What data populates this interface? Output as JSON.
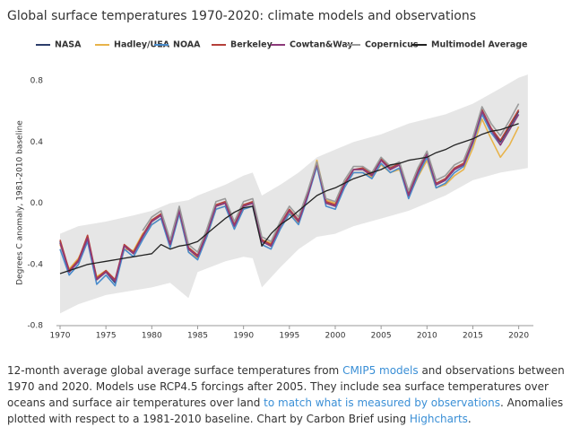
{
  "chart_data": {
    "type": "line",
    "title": "Global surface temperatures 1970-2020: climate models and observations",
    "ylabel": "Degrees C anomaly, 1981-2010 baseline",
    "x": [
      1970,
      1971,
      1972,
      1973,
      1974,
      1975,
      1976,
      1977,
      1978,
      1979,
      1980,
      1981,
      1982,
      1983,
      1984,
      1985,
      1986,
      1987,
      1988,
      1989,
      1990,
      1991,
      1992,
      1993,
      1994,
      1995,
      1996,
      1997,
      1998,
      1999,
      2000,
      2001,
      2002,
      2003,
      2004,
      2005,
      2006,
      2007,
      2008,
      2009,
      2010,
      2011,
      2012,
      2013,
      2014,
      2015,
      2016,
      2017,
      2018,
      2019,
      2020
    ],
    "xlim": [
      1969.6,
      2021.6
    ],
    "xticks": [
      1970,
      1975,
      1980,
      1985,
      1990,
      1995,
      2000,
      2005,
      2010,
      2015,
      2020
    ],
    "ylim": [
      -0.8,
      0.8
    ],
    "yticks": [
      {
        "value": -0.8,
        "label": "-0.8"
      },
      -0.4,
      {
        "value": 0,
        "label": "0.0"
      },
      0.4,
      0.8
    ],
    "grid": false,
    "legend": "top",
    "band": {
      "color": "#e6e6e6",
      "x": [
        1970,
        1972,
        1975,
        1978,
        1980,
        1982,
        1984,
        1985,
        1988,
        1990,
        1991,
        1992,
        1994,
        1996,
        1998,
        2000,
        2002,
        2005,
        2008,
        2010,
        2012,
        2015,
        2018,
        2020,
        2021
      ],
      "upper": [
        -0.2,
        -0.15,
        -0.12,
        -0.08,
        -0.05,
        0.0,
        0.02,
        0.05,
        0.12,
        0.18,
        0.2,
        0.05,
        0.12,
        0.2,
        0.3,
        0.35,
        0.4,
        0.45,
        0.52,
        0.55,
        0.58,
        0.65,
        0.75,
        0.82,
        0.84
      ],
      "lower": [
        -0.72,
        -0.66,
        -0.6,
        -0.57,
        -0.55,
        -0.52,
        -0.62,
        -0.45,
        -0.38,
        -0.35,
        -0.36,
        -0.55,
        -0.42,
        -0.3,
        -0.22,
        -0.2,
        -0.15,
        -0.1,
        -0.05,
        0.0,
        0.05,
        0.15,
        0.2,
        0.22,
        0.23
      ]
    },
    "series": [
      {
        "name": "NASA",
        "color": "#2c3e6b",
        "values": [
          -0.25,
          -0.45,
          -0.38,
          -0.22,
          -0.5,
          -0.45,
          -0.52,
          -0.28,
          -0.33,
          -0.22,
          -0.12,
          -0.08,
          -0.27,
          -0.05,
          -0.3,
          -0.35,
          -0.2,
          -0.02,
          0.0,
          -0.15,
          -0.02,
          0.0,
          -0.25,
          -0.28,
          -0.15,
          -0.05,
          -0.12,
          0.05,
          0.25,
          0.0,
          -0.02,
          0.12,
          0.22,
          0.22,
          0.18,
          0.28,
          0.22,
          0.25,
          0.05,
          0.2,
          0.32,
          0.12,
          0.15,
          0.22,
          0.25,
          0.4,
          0.6,
          0.48,
          0.4,
          0.5,
          0.6
        ]
      },
      {
        "name": "Hadley/UEA",
        "color": "#e8b34a",
        "values": [
          -0.27,
          -0.43,
          -0.36,
          -0.24,
          -0.48,
          -0.44,
          -0.5,
          -0.3,
          -0.31,
          -0.2,
          -0.14,
          -0.1,
          -0.25,
          -0.07,
          -0.32,
          -0.36,
          -0.22,
          -0.04,
          -0.02,
          -0.16,
          -0.04,
          -0.02,
          -0.24,
          -0.26,
          -0.16,
          -0.06,
          -0.13,
          0.06,
          0.28,
          0.02,
          0.0,
          0.13,
          0.2,
          0.2,
          0.17,
          0.25,
          0.2,
          0.22,
          0.04,
          0.17,
          0.28,
          0.1,
          0.12,
          0.18,
          0.22,
          0.36,
          0.55,
          0.42,
          0.3,
          0.38,
          0.5
        ]
      },
      {
        "name": "NOAA",
        "color": "#4a8ccc",
        "values": [
          -0.3,
          -0.47,
          -0.4,
          -0.25,
          -0.53,
          -0.47,
          -0.54,
          -0.3,
          -0.35,
          -0.24,
          -0.14,
          -0.1,
          -0.29,
          -0.07,
          -0.32,
          -0.37,
          -0.22,
          -0.04,
          -0.02,
          -0.17,
          -0.04,
          -0.02,
          -0.27,
          -0.3,
          -0.17,
          -0.07,
          -0.14,
          0.04,
          0.24,
          -0.02,
          -0.04,
          0.1,
          0.2,
          0.2,
          0.16,
          0.26,
          0.2,
          0.23,
          0.03,
          0.18,
          0.3,
          0.1,
          0.13,
          0.2,
          0.24,
          0.39,
          0.58,
          0.46,
          0.38,
          0.48,
          0.58
        ]
      },
      {
        "name": "Berkeley",
        "color": "#b5403a",
        "values": [
          -0.24,
          -0.44,
          -0.37,
          -0.21,
          -0.49,
          -0.44,
          -0.5,
          -0.27,
          -0.32,
          -0.21,
          -0.11,
          -0.07,
          -0.26,
          -0.04,
          -0.29,
          -0.34,
          -0.19,
          -0.01,
          0.01,
          -0.14,
          -0.01,
          0.01,
          -0.24,
          -0.27,
          -0.14,
          -0.04,
          -0.11,
          0.06,
          0.26,
          0.01,
          -0.01,
          0.13,
          0.22,
          0.23,
          0.19,
          0.29,
          0.23,
          0.26,
          0.06,
          0.21,
          0.33,
          0.13,
          0.16,
          0.23,
          0.26,
          0.41,
          0.61,
          0.49,
          0.41,
          0.51,
          0.61
        ]
      },
      {
        "name": "Cowtan&Way",
        "color": "#8c3a7a",
        "values": [
          -0.26,
          -0.45,
          -0.38,
          -0.23,
          -0.5,
          -0.45,
          -0.51,
          -0.28,
          -0.33,
          -0.22,
          -0.12,
          -0.08,
          -0.27,
          -0.05,
          -0.3,
          -0.35,
          -0.2,
          -0.02,
          0.0,
          -0.15,
          -0.02,
          0.0,
          -0.25,
          -0.28,
          -0.15,
          -0.05,
          -0.12,
          0.05,
          0.26,
          0.0,
          -0.02,
          0.12,
          0.22,
          0.22,
          0.18,
          0.28,
          0.22,
          0.25,
          0.05,
          0.2,
          0.32,
          0.12,
          0.15,
          0.22,
          0.25,
          0.4,
          0.6,
          0.48,
          0.38,
          0.48,
          0.58
        ]
      },
      {
        "name": "Copernicus",
        "color": "#9a9a9a",
        "values": [
          null,
          null,
          null,
          null,
          null,
          null,
          null,
          null,
          null,
          -0.18,
          -0.09,
          -0.05,
          -0.24,
          -0.02,
          -0.27,
          -0.32,
          -0.17,
          0.01,
          0.03,
          -0.12,
          0.01,
          0.03,
          -0.22,
          -0.25,
          -0.12,
          -0.02,
          -0.09,
          0.08,
          0.27,
          0.03,
          0.01,
          0.15,
          0.24,
          0.24,
          0.2,
          0.3,
          0.24,
          0.27,
          0.08,
          0.23,
          0.34,
          0.15,
          0.18,
          0.25,
          0.28,
          0.43,
          0.63,
          0.52,
          0.44,
          0.54,
          0.65
        ]
      },
      {
        "name": "Multimodel Average",
        "color": "#222222",
        "values": [
          -0.46,
          -0.44,
          -0.42,
          -0.4,
          -0.39,
          -0.38,
          -0.37,
          -0.36,
          -0.35,
          -0.34,
          -0.33,
          -0.27,
          -0.3,
          -0.28,
          -0.27,
          -0.25,
          -0.2,
          -0.15,
          -0.1,
          -0.06,
          -0.03,
          -0.02,
          -0.28,
          -0.2,
          -0.14,
          -0.1,
          -0.05,
          0.0,
          0.05,
          0.08,
          0.1,
          0.13,
          0.16,
          0.18,
          0.2,
          0.22,
          0.25,
          0.26,
          0.28,
          0.29,
          0.3,
          0.33,
          0.35,
          0.38,
          0.4,
          0.42,
          0.45,
          0.47,
          0.48,
          0.5,
          0.52
        ]
      }
    ]
  },
  "caption": [
    {
      "text": "12-month average global average surface temperatures from "
    },
    {
      "text": "CMIP5 models",
      "link": true
    },
    {
      "text": " and observations between 1970 and 2020. Models use RCP4.5 forcings after 2005. They include sea surface temperatures over oceans and surface air temperatures over land "
    },
    {
      "text": "to match what is measured by observations",
      "link": true
    },
    {
      "text": ". Anomalies plotted with respect to a 1981-2010 baseline. Chart by Carbon Brief using "
    },
    {
      "text": "Highcharts",
      "link": true
    },
    {
      "text": "."
    }
  ]
}
